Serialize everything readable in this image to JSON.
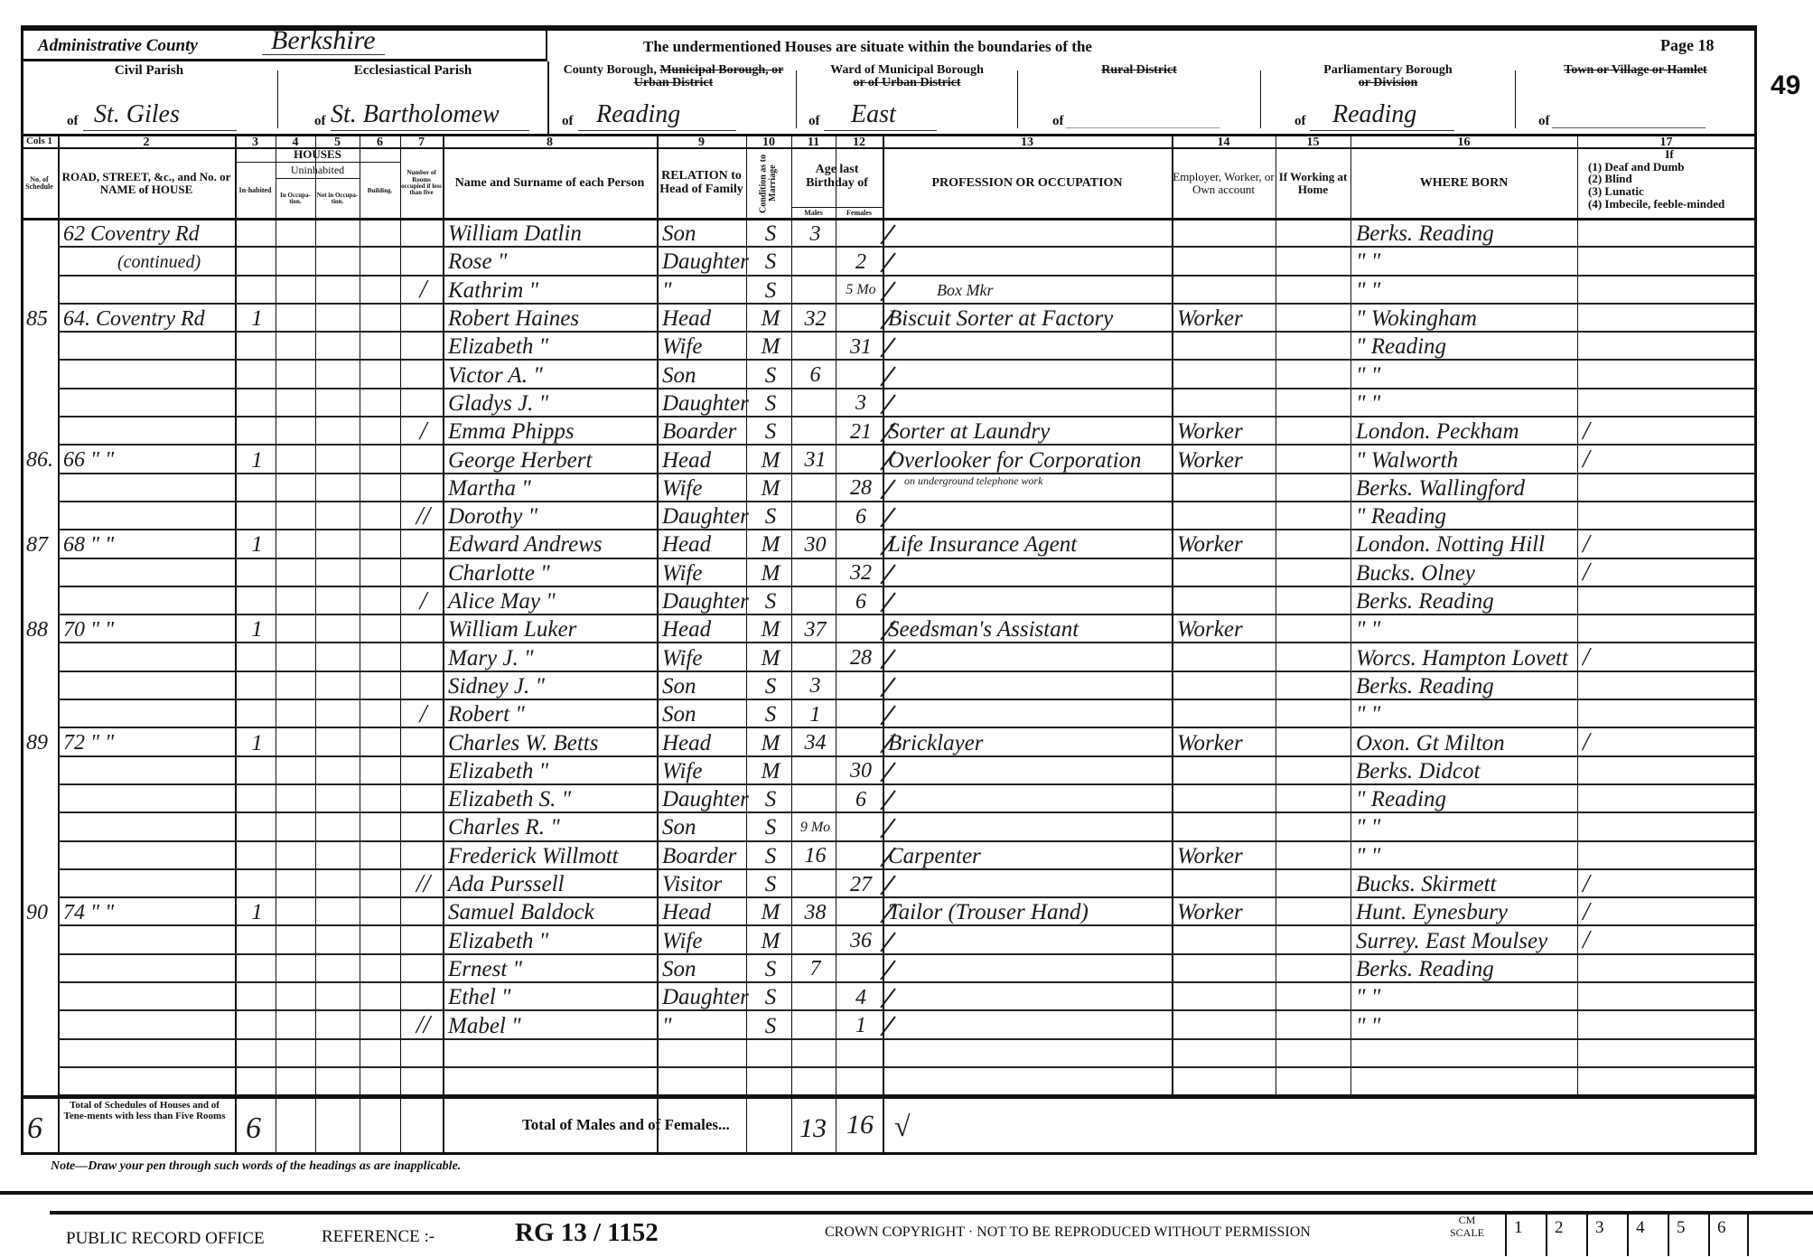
{
  "header": {
    "admin_county_label": "Administrative County",
    "admin_county_value": "Berkshire",
    "boundaries_text": "The undermentioned Houses are situate within the boundaries of the",
    "page_label": "Page 18",
    "folio_number": "49",
    "of": "of",
    "civil_parish_label": "Civil Parish",
    "civil_parish_value": "St. Giles",
    "ecclesiastical_parish_label": "Ecclesiastical Parish",
    "ecclesiastical_parish_value": "St. Bartholomew",
    "county_borough_label": "County Borough,",
    "county_borough_struck": "Municipal Borough, or Urban District",
    "county_borough_value": "Reading",
    "ward_label": "Ward of Municipal Borough",
    "ward_struck": "or of Urban District",
    "ward_value": "East",
    "rural_district_struck": "Rural District",
    "parliamentary_label": "Parliamentary Borough",
    "parliamentary_struck": "or Division",
    "parliamentary_value": "Reading",
    "town_struck": "Town or Village or Hamlet"
  },
  "columns": {
    "numbers": [
      "Cols 1",
      "2",
      "3",
      "4",
      "5",
      "6",
      "7",
      "8",
      "9",
      "10",
      "11",
      "12",
      "13",
      "14",
      "15",
      "16",
      "17"
    ],
    "schedule": "No. of Schedule",
    "road": "ROAD, STREET, &c., and No. or NAME of HOUSE",
    "houses": "HOUSES",
    "uninhabited": "Uninhabited",
    "inhabited": "In-habited",
    "in_occupation": "In Occupa-tion.",
    "not_in_occupation": "Not in Occupa-tion.",
    "building": "Building.",
    "rooms": "Number of Rooms occupied if less than five",
    "name": "Name and Surname of each Person",
    "relation": "RELATION to Head of Family",
    "condition": "Condition as to Marriage",
    "age": "Age last Birthday of",
    "males": "Males",
    "females": "Females",
    "occupation": "PROFESSION OR OCCUPATION",
    "employment": "Employer, Worker, or Own account",
    "at_home": "If Working at Home",
    "where_born": "WHERE BORN",
    "infirmity_if": "If",
    "infirmity": [
      "(1) Deaf and Dumb",
      "(2) Blind",
      "(3) Lunatic",
      "(4) Imbecile, feeble-minded"
    ]
  },
  "rows": [
    {
      "schedule": "",
      "address": "62 Coventry Rd",
      "inhabited": "",
      "mark": "",
      "name": "William Datlin",
      "relation": "Son",
      "condition": "S",
      "age_m": "3",
      "age_f": "",
      "occupation": "",
      "occupation_note": "",
      "employment": "",
      "where_born": "Berks. Reading",
      "infirmity": ""
    },
    {
      "schedule": "",
      "address": "(continued)",
      "inhabited": "",
      "mark": "",
      "name": "Rose  \"",
      "relation": "Daughter",
      "condition": "S",
      "age_m": "",
      "age_f": "2",
      "occupation": "",
      "occupation_note": "",
      "employment": "",
      "where_born": "\"     \"",
      "infirmity": ""
    },
    {
      "schedule": "",
      "address": "",
      "inhabited": "",
      "mark": "/",
      "name": "Kathrim  \"",
      "relation": "\"",
      "condition": "S",
      "age_m": "",
      "age_f": "5 Mo",
      "occupation": "",
      "occupation_note": "",
      "employment": "",
      "where_born": "\"     \"",
      "infirmity": ""
    },
    {
      "schedule": "85",
      "address": "64. Coventry Rd",
      "inhabited": "1",
      "mark": "",
      "name": "Robert Haines",
      "relation": "Head",
      "condition": "M",
      "age_m": "32",
      "age_f": "",
      "occupation": "Biscuit Sorter at Factory",
      "occupation_note": "Box Mkr",
      "employment": "Worker",
      "where_born": "\"  Wokingham",
      "infirmity": ""
    },
    {
      "schedule": "",
      "address": "",
      "inhabited": "",
      "mark": "",
      "name": "Elizabeth  \"",
      "relation": "Wife",
      "condition": "M",
      "age_m": "",
      "age_f": "31",
      "occupation": "",
      "occupation_note": "",
      "employment": "",
      "where_born": "\"  Reading",
      "infirmity": ""
    },
    {
      "schedule": "",
      "address": "",
      "inhabited": "",
      "mark": "",
      "name": "Victor A.  \"",
      "relation": "Son",
      "condition": "S",
      "age_m": "6",
      "age_f": "",
      "occupation": "",
      "occupation_note": "",
      "employment": "",
      "where_born": "\"     \"",
      "infirmity": ""
    },
    {
      "schedule": "",
      "address": "",
      "inhabited": "",
      "mark": "",
      "name": "Gladys J.  \"",
      "relation": "Daughter",
      "condition": "S",
      "age_m": "",
      "age_f": "3",
      "occupation": "",
      "occupation_note": "",
      "employment": "",
      "where_born": "\"     \"",
      "infirmity": ""
    },
    {
      "schedule": "",
      "address": "",
      "inhabited": "",
      "mark": "/",
      "name": "Emma Phipps",
      "relation": "Boarder",
      "condition": "S",
      "age_m": "",
      "age_f": "21",
      "occupation": "Sorter at Laundry",
      "occupation_note": "",
      "employment": "Worker",
      "where_born": "London. Peckham",
      "infirmity": "/"
    },
    {
      "schedule": "86.",
      "address": "66   \"   \"",
      "inhabited": "1",
      "mark": "",
      "name": "George Herbert",
      "relation": "Head",
      "condition": "M",
      "age_m": "31",
      "age_f": "",
      "occupation": "Overlooker for Corporation",
      "occupation_note": "on underground telephone work",
      "employment": "Worker",
      "where_born": "\"  Walworth",
      "infirmity": "/"
    },
    {
      "schedule": "",
      "address": "",
      "inhabited": "",
      "mark": "",
      "name": "Martha  \"",
      "relation": "Wife",
      "condition": "M",
      "age_m": "",
      "age_f": "28",
      "occupation": "",
      "occupation_note": "",
      "employment": "",
      "where_born": "Berks. Wallingford",
      "infirmity": ""
    },
    {
      "schedule": "",
      "address": "",
      "inhabited": "",
      "mark": "//",
      "name": "Dorothy  \"",
      "relation": "Daughter",
      "condition": "S",
      "age_m": "",
      "age_f": "6",
      "occupation": "",
      "occupation_note": "",
      "employment": "",
      "where_born": "\"  Reading",
      "infirmity": ""
    },
    {
      "schedule": "87",
      "address": "68   \"   \"",
      "inhabited": "1",
      "mark": "",
      "name": "Edward Andrews",
      "relation": "Head",
      "condition": "M",
      "age_m": "30",
      "age_f": "",
      "occupation": "Life Insurance Agent",
      "occupation_note": "",
      "employment": "Worker",
      "where_born": "London. Notting Hill",
      "infirmity": "/"
    },
    {
      "schedule": "",
      "address": "",
      "inhabited": "",
      "mark": "",
      "name": "Charlotte  \"",
      "relation": "Wife",
      "condition": "M",
      "age_m": "",
      "age_f": "32",
      "occupation": "",
      "occupation_note": "",
      "employment": "",
      "where_born": "Bucks. Olney",
      "infirmity": "/"
    },
    {
      "schedule": "",
      "address": "",
      "inhabited": "",
      "mark": "/",
      "name": "Alice May  \"",
      "relation": "Daughter",
      "condition": "S",
      "age_m": "",
      "age_f": "6",
      "occupation": "",
      "occupation_note": "",
      "employment": "",
      "where_born": "Berks. Reading",
      "infirmity": ""
    },
    {
      "schedule": "88",
      "address": "70   \"   \"",
      "inhabited": "1",
      "mark": "",
      "name": "William Luker",
      "relation": "Head",
      "condition": "M",
      "age_m": "37",
      "age_f": "",
      "occupation": "Seedsman's Assistant",
      "occupation_note": "",
      "employment": "Worker",
      "where_born": "\"     \"",
      "infirmity": ""
    },
    {
      "schedule": "",
      "address": "",
      "inhabited": "",
      "mark": "",
      "name": "Mary J.  \"",
      "relation": "Wife",
      "condition": "M",
      "age_m": "",
      "age_f": "28",
      "occupation": "",
      "occupation_note": "",
      "employment": "",
      "where_born": "Worcs. Hampton Lovett",
      "infirmity": "/"
    },
    {
      "schedule": "",
      "address": "",
      "inhabited": "",
      "mark": "",
      "name": "Sidney J.  \"",
      "relation": "Son",
      "condition": "S",
      "age_m": "3",
      "age_f": "",
      "occupation": "",
      "occupation_note": "",
      "employment": "",
      "where_born": "Berks. Reading",
      "infirmity": ""
    },
    {
      "schedule": "",
      "address": "",
      "inhabited": "",
      "mark": "/",
      "name": "Robert  \"",
      "relation": "Son",
      "condition": "S",
      "age_m": "1",
      "age_f": "",
      "occupation": "",
      "occupation_note": "",
      "employment": "",
      "where_born": "\"     \"",
      "infirmity": ""
    },
    {
      "schedule": "89",
      "address": "72   \"   \"",
      "inhabited": "1",
      "mark": "",
      "name": "Charles W. Betts",
      "relation": "Head",
      "condition": "M",
      "age_m": "34",
      "age_f": "",
      "occupation": "Bricklayer",
      "occupation_note": "",
      "employment": "Worker",
      "where_born": "Oxon. Gt Milton",
      "infirmity": "/"
    },
    {
      "schedule": "",
      "address": "",
      "inhabited": "",
      "mark": "",
      "name": "Elizabeth  \"",
      "relation": "Wife",
      "condition": "M",
      "age_m": "",
      "age_f": "30",
      "occupation": "",
      "occupation_note": "",
      "employment": "",
      "where_born": "Berks. Didcot",
      "infirmity": ""
    },
    {
      "schedule": "",
      "address": "",
      "inhabited": "",
      "mark": "",
      "name": "Elizabeth S.  \"",
      "relation": "Daughter",
      "condition": "S",
      "age_m": "",
      "age_f": "6",
      "occupation": "",
      "occupation_note": "",
      "employment": "",
      "where_born": "\"  Reading",
      "infirmity": ""
    },
    {
      "schedule": "",
      "address": "",
      "inhabited": "",
      "mark": "",
      "name": "Charles R.  \"",
      "relation": "Son",
      "condition": "S",
      "age_m": "9 Mo",
      "age_f": "",
      "occupation": "",
      "occupation_note": "",
      "employment": "",
      "where_born": "\"     \"",
      "infirmity": ""
    },
    {
      "schedule": "",
      "address": "",
      "inhabited": "",
      "mark": "",
      "name": "Frederick Willmott",
      "relation": "Boarder",
      "condition": "S",
      "age_m": "16",
      "age_f": "",
      "occupation": "Carpenter",
      "occupation_note": "",
      "employment": "Worker",
      "where_born": "\"     \"",
      "infirmity": ""
    },
    {
      "schedule": "",
      "address": "",
      "inhabited": "",
      "mark": "//",
      "name": "Ada Purssell",
      "relation": "Visitor",
      "condition": "S",
      "age_m": "",
      "age_f": "27",
      "occupation": "",
      "occupation_note": "",
      "employment": "",
      "where_born": "Bucks. Skirmett",
      "infirmity": "/"
    },
    {
      "schedule": "90",
      "address": "74   \"   \"",
      "inhabited": "1",
      "mark": "",
      "name": "Samuel Baldock",
      "relation": "Head",
      "condition": "M",
      "age_m": "38",
      "age_f": "",
      "occupation": "Tailor (Trouser Hand)",
      "occupation_note": "",
      "employment": "Worker",
      "where_born": "Hunt. Eynesbury",
      "infirmity": "/"
    },
    {
      "schedule": "",
      "address": "",
      "inhabited": "",
      "mark": "",
      "name": "Elizabeth  \"",
      "relation": "Wife",
      "condition": "M",
      "age_m": "",
      "age_f": "36",
      "occupation": "",
      "occupation_note": "",
      "employment": "",
      "where_born": "Surrey. East Moulsey",
      "infirmity": "/"
    },
    {
      "schedule": "",
      "address": "",
      "inhabited": "",
      "mark": "",
      "name": "Ernest  \"",
      "relation": "Son",
      "condition": "S",
      "age_m": "7",
      "age_f": "",
      "occupation": "",
      "occupation_note": "",
      "employment": "",
      "where_born": "Berks. Reading",
      "infirmity": ""
    },
    {
      "schedule": "",
      "address": "",
      "inhabited": "",
      "mark": "",
      "name": "Ethel  \"",
      "relation": "Daughter",
      "condition": "S",
      "age_m": "",
      "age_f": "4",
      "occupation": "",
      "occupation_note": "",
      "employment": "",
      "where_born": "\"     \"",
      "infirmity": ""
    },
    {
      "schedule": "",
      "address": "",
      "inhabited": "",
      "mark": "//",
      "name": "Mabel  \"",
      "relation": "\"",
      "condition": "S",
      "age_m": "",
      "age_f": "1",
      "occupation": "",
      "occupation_note": "",
      "employment": "",
      "where_born": "\"     \"",
      "infirmity": ""
    },
    {
      "schedule": "",
      "address": "",
      "inhabited": "",
      "mark": "",
      "name": "",
      "relation": "",
      "condition": "",
      "age_m": "",
      "age_f": "",
      "occupation": "",
      "occupation_note": "",
      "employment": "",
      "where_born": "",
      "infirmity": ""
    },
    {
      "schedule": "",
      "address": "",
      "inhabited": "",
      "mark": "",
      "name": "",
      "relation": "",
      "condition": "",
      "age_m": "",
      "age_f": "",
      "occupation": "",
      "occupation_note": "",
      "employment": "",
      "where_born": "",
      "infirmity": ""
    }
  ],
  "totals": {
    "schedules_value": "6",
    "schedules_label": "Total of Schedules of Houses and of Tene-ments with less than Five Rooms",
    "houses_value": "6",
    "males_females_label": "Total of Males and of Females...",
    "males": "13",
    "females": "16",
    "check": "√"
  },
  "note": "Note—Draw your pen through such words of the headings as are inapplicable.",
  "footer": {
    "office": "PUBLIC RECORD OFFICE",
    "reference_label": "REFERENCE :-",
    "reference": "RG 13 / 1152",
    "copyright": "CROWN COPYRIGHT  ·  NOT TO BE REPRODUCED WITHOUT PERMISSION",
    "scale_label": "CM SCALE",
    "scale": [
      "1",
      "2",
      "3",
      "4",
      "5",
      "6"
    ]
  }
}
